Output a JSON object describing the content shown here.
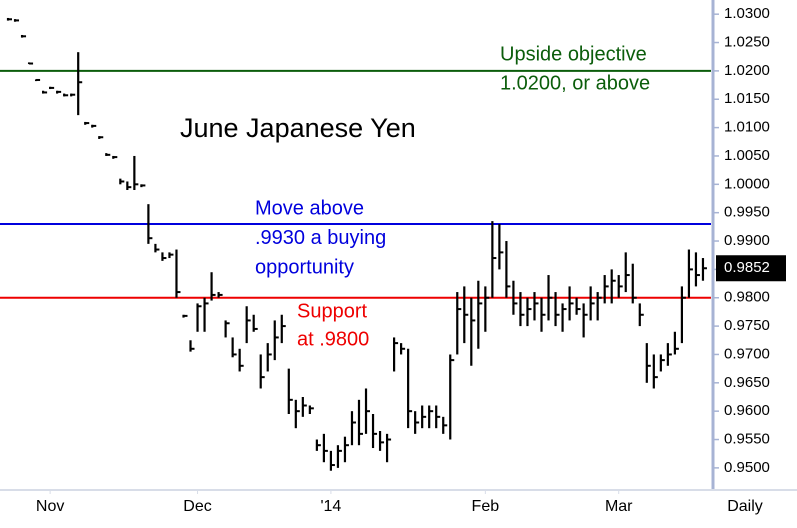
{
  "chart_data": {
    "type": "hlc",
    "title": "June Japanese Yen",
    "color": "#000000",
    "xlim": [
      -1.14,
      100.43
    ],
    "ylim": [
      0.9461,
      1.0325
    ],
    "xticks": [
      {
        "value": 6,
        "label": "Nov"
      },
      {
        "value": 27,
        "label": "Dec"
      },
      {
        "value": 46,
        "label": "'14"
      },
      {
        "value": 68,
        "label": "Feb"
      },
      {
        "value": 87,
        "label": "Mar"
      }
    ],
    "period": "Daily",
    "yticks": [
      {
        "value": 0.95,
        "label": "0.9500"
      },
      {
        "value": 0.955,
        "label": "0.9550"
      },
      {
        "value": 0.96,
        "label": "0.9600"
      },
      {
        "value": 0.965,
        "label": "0.9650"
      },
      {
        "value": 0.97,
        "label": "0.9700"
      },
      {
        "value": 0.975,
        "label": "0.9750"
      },
      {
        "value": 0.98,
        "label": "0.9800"
      },
      {
        "value": 0.985,
        "label": "0.9850"
      },
      {
        "value": 0.99,
        "label": "0.9900"
      },
      {
        "value": 0.995,
        "label": "0.9950"
      },
      {
        "value": 1,
        "label": "1.0000"
      },
      {
        "value": 1.005,
        "label": "1.0050"
      },
      {
        "value": 1.01,
        "label": "1.0100"
      },
      {
        "value": 1.015,
        "label": "1.0150"
      },
      {
        "value": 1.02,
        "label": "1.0200"
      },
      {
        "value": 1.025,
        "label": "1.0250"
      },
      {
        "value": 1.03,
        "label": "1.0300"
      }
    ],
    "last_price": {
      "value": 0.9852,
      "label": "0.9852"
    },
    "high": [
      1.0292,
      1.029,
      1.0262,
      1.0215,
      1.0185,
      1.0165,
      1.0172,
      1.0165,
      1.016,
      1.016,
      1.0233,
      1.011,
      1.0105,
      1.0085,
      1.0055,
      1.005,
      1.001,
      1.0005,
      1.005,
      1,
      0.9965,
      0.9895,
      0.988,
      0.988,
      0.9885,
      0.977,
      0.9725,
      0.979,
      0.98,
      0.9845,
      0.981,
      0.976,
      0.973,
      0.971,
      0.9785,
      0.977,
      0.97,
      0.972,
      0.976,
      0.977,
      0.9675,
      0.962,
      0.9625,
      0.961,
      0.955,
      0.956,
      0.953,
      0.954,
      0.9555,
      0.96,
      0.962,
      0.964,
      0.9595,
      0.9565,
      0.956,
      0.973,
      0.972,
      0.971,
      0.96,
      0.961,
      0.961,
      0.961,
      0.959,
      0.97,
      0.981,
      0.982,
      0.98,
      0.983,
      0.982,
      0.9935,
      0.993,
      0.99,
      0.983,
      0.981,
      0.98,
      0.981,
      0.98,
      0.984,
      0.981,
      0.979,
      0.982,
      0.98,
      0.979,
      0.982,
      0.981,
      0.984,
      0.985,
      0.984,
      0.988,
      0.986,
      0.979,
      0.972,
      0.97,
      0.97,
      0.972,
      0.974,
      0.982,
      0.9885,
      0.988,
      0.987
    ],
    "low": [
      1.029,
      1.0288,
      1.026,
      1.0212,
      1.0182,
      1.016,
      1.0168,
      1.016,
      1.0155,
      1.0155,
      1.0122,
      1.0105,
      1.01,
      1.008,
      1.005,
      1.0045,
      1,
      0.999,
      0.999,
      0.9995,
      0.9895,
      0.988,
      0.9865,
      0.987,
      0.98,
      0.9765,
      0.9705,
      0.974,
      0.974,
      0.9795,
      0.98,
      0.973,
      0.9695,
      0.967,
      0.972,
      0.974,
      0.964,
      0.967,
      0.969,
      0.972,
      0.9595,
      0.957,
      0.959,
      0.9595,
      0.953,
      0.951,
      0.9495,
      0.95,
      0.951,
      0.954,
      0.954,
      0.956,
      0.9535,
      0.953,
      0.951,
      0.967,
      0.97,
      0.957,
      0.956,
      0.957,
      0.957,
      0.957,
      0.956,
      0.955,
      0.97,
      0.972,
      0.968,
      0.971,
      0.974,
      0.98,
      0.985,
      0.98,
      0.977,
      0.975,
      0.975,
      0.976,
      0.974,
      0.976,
      0.975,
      0.974,
      0.976,
      0.977,
      0.973,
      0.976,
      0.976,
      0.979,
      0.979,
      0.98,
      0.981,
      0.979,
      0.975,
      0.965,
      0.964,
      0.967,
      0.968,
      0.97,
      0.972,
      0.98,
      0.982,
      0.983
    ],
    "close": [
      1.0291,
      1.0289,
      1.0261,
      1.0213,
      1.0184,
      1.0162,
      1.017,
      1.0163,
      1.0157,
      1.0158,
      1.018,
      1.0108,
      1.0103,
      1.0083,
      1.0052,
      1.0048,
      1.0005,
      0.9995,
      1,
      0.9998,
      0.9905,
      0.9885,
      0.987,
      0.9876,
      0.981,
      0.9768,
      0.971,
      0.9785,
      0.979,
      0.9805,
      0.9805,
      0.9755,
      0.97,
      0.968,
      0.976,
      0.9745,
      0.966,
      0.97,
      0.973,
      0.975,
      0.962,
      0.96,
      0.961,
      0.9605,
      0.954,
      0.953,
      0.9505,
      0.953,
      0.954,
      0.958,
      0.956,
      0.96,
      0.956,
      0.9545,
      0.955,
      0.972,
      0.971,
      0.96,
      0.958,
      0.959,
      0.96,
      0.959,
      0.9575,
      0.969,
      0.978,
      0.977,
      0.976,
      0.979,
      0.98,
      0.987,
      0.988,
      0.982,
      0.979,
      0.977,
      0.978,
      0.979,
      0.977,
      0.98,
      0.977,
      0.978,
      0.979,
      0.978,
      0.977,
      0.979,
      0.98,
      0.982,
      0.983,
      0.982,
      0.984,
      0.98,
      0.977,
      0.968,
      0.966,
      0.969,
      0.97,
      0.971,
      0.98,
      0.985,
      0.984,
      0.9852
    ],
    "hlines": [
      {
        "value": 1.02,
        "color": "#0b5d0b"
      },
      {
        "value": 0.993,
        "color": "#0000dd"
      },
      {
        "value": 0.98,
        "color": "#ee0000"
      }
    ],
    "annotations": [
      {
        "color": "#0b5d0b",
        "lines": [
          "Upside objective",
          "1.0200, or above"
        ]
      },
      {
        "color": "#0000dd",
        "lines": [
          "Move above",
          ".9930 a buying",
          "opportunity"
        ]
      },
      {
        "color": "#ee0000",
        "lines": [
          "Support",
          "at .9800"
        ]
      }
    ]
  }
}
